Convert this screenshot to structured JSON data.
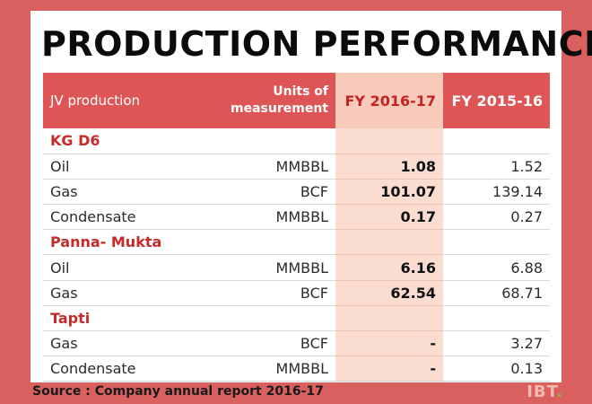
{
  "title": "PRODUCTION PERFORMANCE",
  "table": {
    "headers": {
      "label": "JV production",
      "units_line1": "Units of",
      "units_line2": "measurement",
      "current": "FY 2016-17",
      "previous": "FY 2015-16"
    },
    "groups": [
      {
        "name": "KG D6",
        "rows": [
          {
            "item": "Oil",
            "unit": "MMBBL",
            "current": "1.08",
            "previous": "1.52"
          },
          {
            "item": "Gas",
            "unit": "BCF",
            "current": "101.07",
            "previous": "139.14"
          },
          {
            "item": "Condensate",
            "unit": "MMBBL",
            "current": "0.17",
            "previous": "0.27"
          }
        ]
      },
      {
        "name": "Panna- Mukta",
        "rows": [
          {
            "item": "Oil",
            "unit": "MMBBL",
            "current": "6.16",
            "previous": "6.88"
          },
          {
            "item": "Gas",
            "unit": "BCF",
            "current": "62.54",
            "previous": "68.71"
          }
        ]
      },
      {
        "name": "Tapti",
        "rows": [
          {
            "item": "Gas",
            "unit": "BCF",
            "current": "-",
            "previous": "3.27"
          },
          {
            "item": "Condensate",
            "unit": "MMBBL",
            "current": "-",
            "previous": "0.13"
          }
        ]
      }
    ]
  },
  "source": "Source : Company annual report 2016-17",
  "logo": {
    "text": "IBT",
    "dot": "."
  },
  "colors": {
    "background": "#d9605f",
    "header": "#dd5655",
    "highlight_header": "#f8caba",
    "highlight_column": "#fadcd0",
    "group_text": "#c62b2b",
    "logo_dot": "#7fbf3e"
  }
}
